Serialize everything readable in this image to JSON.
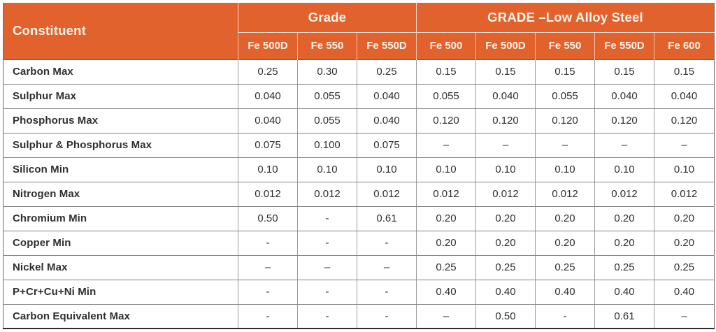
{
  "table": {
    "constituent_header": "Constituent",
    "groups": [
      {
        "label": "Grade",
        "columns": [
          "Fe 500D",
          "Fe 550",
          "Fe 550D"
        ]
      },
      {
        "label": "GRADE –Low Alloy Steel",
        "columns": [
          "Fe 500",
          "Fe 500D",
          "Fe 550",
          "Fe 550D",
          "Fe 600"
        ]
      }
    ],
    "rows": [
      {
        "constituent": "Carbon Max",
        "values": [
          "0.25",
          "0.30",
          "0.25",
          "0.15",
          "0.15",
          "0.15",
          "0.15",
          "0.15"
        ]
      },
      {
        "constituent": "Sulphur Max",
        "values": [
          "0.040",
          "0.055",
          "0.040",
          "0.055",
          "0.040",
          "0.055",
          "0.040",
          "0.040"
        ]
      },
      {
        "constituent": "Phosphorus Max",
        "values": [
          "0.040",
          "0.055",
          "0.040",
          "0.120",
          "0.120",
          "0.120",
          "0.120",
          "0.120"
        ]
      },
      {
        "constituent": "Sulphur & Phosphorus Max",
        "values": [
          "0.075",
          "0.100",
          "0.075",
          "–",
          "–",
          "–",
          "–",
          "–"
        ]
      },
      {
        "constituent": "Silicon Min",
        "values": [
          "0.10",
          "0.10",
          "0.10",
          "0.10",
          "0.10",
          "0.10",
          "0.10",
          "0.10"
        ]
      },
      {
        "constituent": "Nitrogen Max",
        "values": [
          "0.012",
          "0.012",
          "0.012",
          "0.012",
          "0.012",
          "0.012",
          "0.012",
          "0.012"
        ]
      },
      {
        "constituent": "Chromium Min",
        "values": [
          "0.50",
          "-",
          "0.61",
          "0.20",
          "0.20",
          "0.20",
          "0.20",
          "0.20"
        ]
      },
      {
        "constituent": "Copper Min",
        "values": [
          "-",
          "-",
          "-",
          "0.20",
          "0.20",
          "0.20",
          "0.20",
          "0.20"
        ]
      },
      {
        "constituent": "Nickel Max",
        "values": [
          "–",
          "–",
          "–",
          "0.25",
          "0.25",
          "0.25",
          "0.25",
          "0.25"
        ]
      },
      {
        "constituent": "P+Cr+Cu+Ni Min",
        "values": [
          "-",
          "-",
          "-",
          "0.40",
          "0.40",
          "0.40",
          "0.40",
          "0.40"
        ]
      },
      {
        "constituent": "Carbon Equivalent Max",
        "values": [
          "-",
          "-",
          "-",
          "–",
          "0.50",
          "-",
          "0.61",
          "–"
        ]
      }
    ],
    "colors": {
      "header_bg": "#E2622D",
      "header_text": "#FBF5EC",
      "body_text": "#2F2F2F",
      "grid_line": "#9B9B9B",
      "bottom_border": "#2B2B2B"
    }
  }
}
